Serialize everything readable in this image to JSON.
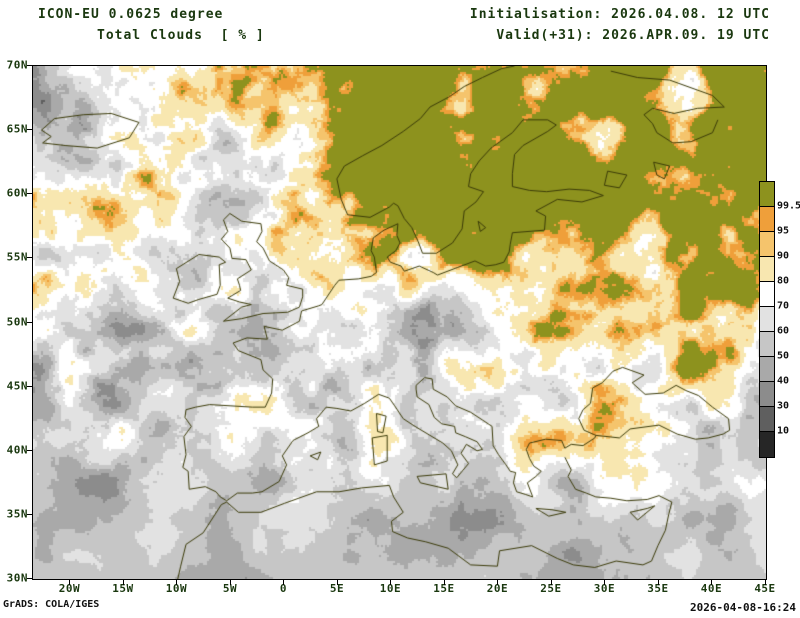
{
  "header": {
    "model": "ICON-EU 0.0625 degree",
    "variable": "Total Clouds  [ % ]",
    "init": "Initialisation: 2026.04.08. 12 UTC",
    "valid": "Valid(+31): 2026.APR.09. 19 UTC"
  },
  "footer": {
    "credit": "GrADS: COLA/IGES",
    "timestamp": "2026-04-08-16:24"
  },
  "colors": {
    "text": "#1a380f",
    "frame": "#000000",
    "coastline": "#3a3a08",
    "background": "#ffffff"
  },
  "chart_data": {
    "type": "heatmap",
    "title": "Total Clouds [ % ]",
    "model": "ICON-EU 0.0625 degree",
    "initialisation": "2026.04.08. 12 UTC",
    "valid": "2026.APR.09. 19 UTC",
    "lead_hours": 31,
    "units": "%",
    "lon_range": [
      -23.5,
      45
    ],
    "lat_range": [
      30,
      70
    ],
    "xlabel_ticks": [
      "20W",
      "15W",
      "10W",
      "5W",
      "0",
      "5E",
      "10E",
      "15E",
      "20E",
      "25E",
      "30E",
      "35E",
      "40E",
      "45E"
    ],
    "ylabel_ticks": [
      "70N",
      "65N",
      "60N",
      "55N",
      "50N",
      "45N",
      "40N",
      "35N",
      "30N"
    ],
    "grid": false,
    "legend_position": "right",
    "legend_levels": [
      10,
      30,
      40,
      50,
      60,
      70,
      80,
      90,
      95,
      99.5
    ],
    "legend_labels_top_to_bottom": [
      "99.5",
      "95",
      "90",
      "80",
      "70",
      "60",
      "50",
      "40",
      "30",
      "10"
    ],
    "palette_low_to_high": [
      "#262626",
      "#5f5f5f",
      "#8c8c8c",
      "#a9a9a9",
      "#c6c6c6",
      "#e2e2e2",
      "#ffffff",
      "#f8e7b0",
      "#f5c46c",
      "#ef9f3a",
      "#8d921e"
    ]
  }
}
